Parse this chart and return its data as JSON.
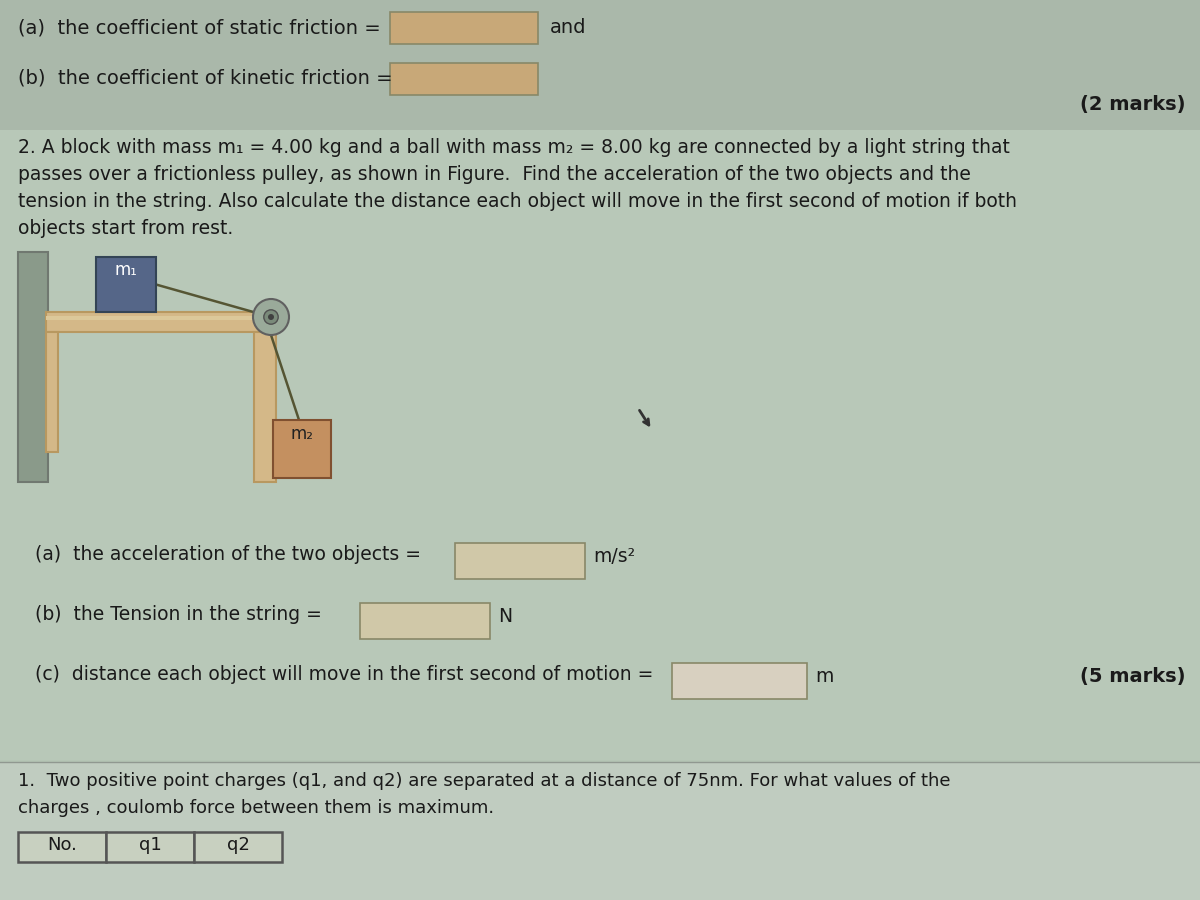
{
  "bg_color": "#b5c5b5",
  "text_color": "#1a1a1a",
  "dark_text": "#111111",
  "line1_a": "(a)  the coefficient of static friction =",
  "line1_b": "and",
  "line2": "(b)  the coefficient of kinetic friction =",
  "marks2": "(2 marks)",
  "prob2_line1": "2. A block with mass m₁ = 4.00 kg and a ball with mass m₂ = 8.00 kg are connected by a light string that",
  "prob2_line2": "passes over a frictionless pulley, as shown in Figure.  Find the acceleration of the two objects and the",
  "prob2_line3": "tension in the string. Also calculate the distance each object will move in the first second of motion if both",
  "prob2_line4": "objects start from rest.",
  "ans_a": "(a)  the acceleration of the two objects =",
  "ans_a_unit": "m/s²",
  "ans_b": "(b)  the Tension in the string =",
  "ans_b_unit": "N",
  "ans_c": "(c)  distance each object will move in the first second of motion =",
  "ans_c_unit": "m",
  "marks5": "(5 marks)",
  "prob3_line1": "1.  Two positive point charges (q1, and q2) are separated at a distance of 75nm. For what values of the",
  "prob3_line2": "charges , coulomb force between them is maximum.",
  "table_headers": [
    "No.",
    "q1",
    "q2"
  ],
  "box_fill_top": "#c8a878",
  "box_fill_mid": "#d0c8a8",
  "box_fill_light": "#d8d0c0",
  "box_edge": "#888868",
  "table_fill": "#c8d0c0",
  "table_edge": "#555555",
  "block_m1_color": "#556688",
  "block_m2_color": "#c49060",
  "pulley_outer": "#9aaa9a",
  "pulley_inner": "#7a8a7a",
  "wood_color": "#d4b888",
  "wood_edge": "#b89860",
  "wall_color": "#b8a888",
  "wall_edge": "#a09070",
  "section_top_bg": "#aab8aa",
  "section_mid_bg": "#b8c8b8",
  "section_bot_bg": "#c0ccc0"
}
